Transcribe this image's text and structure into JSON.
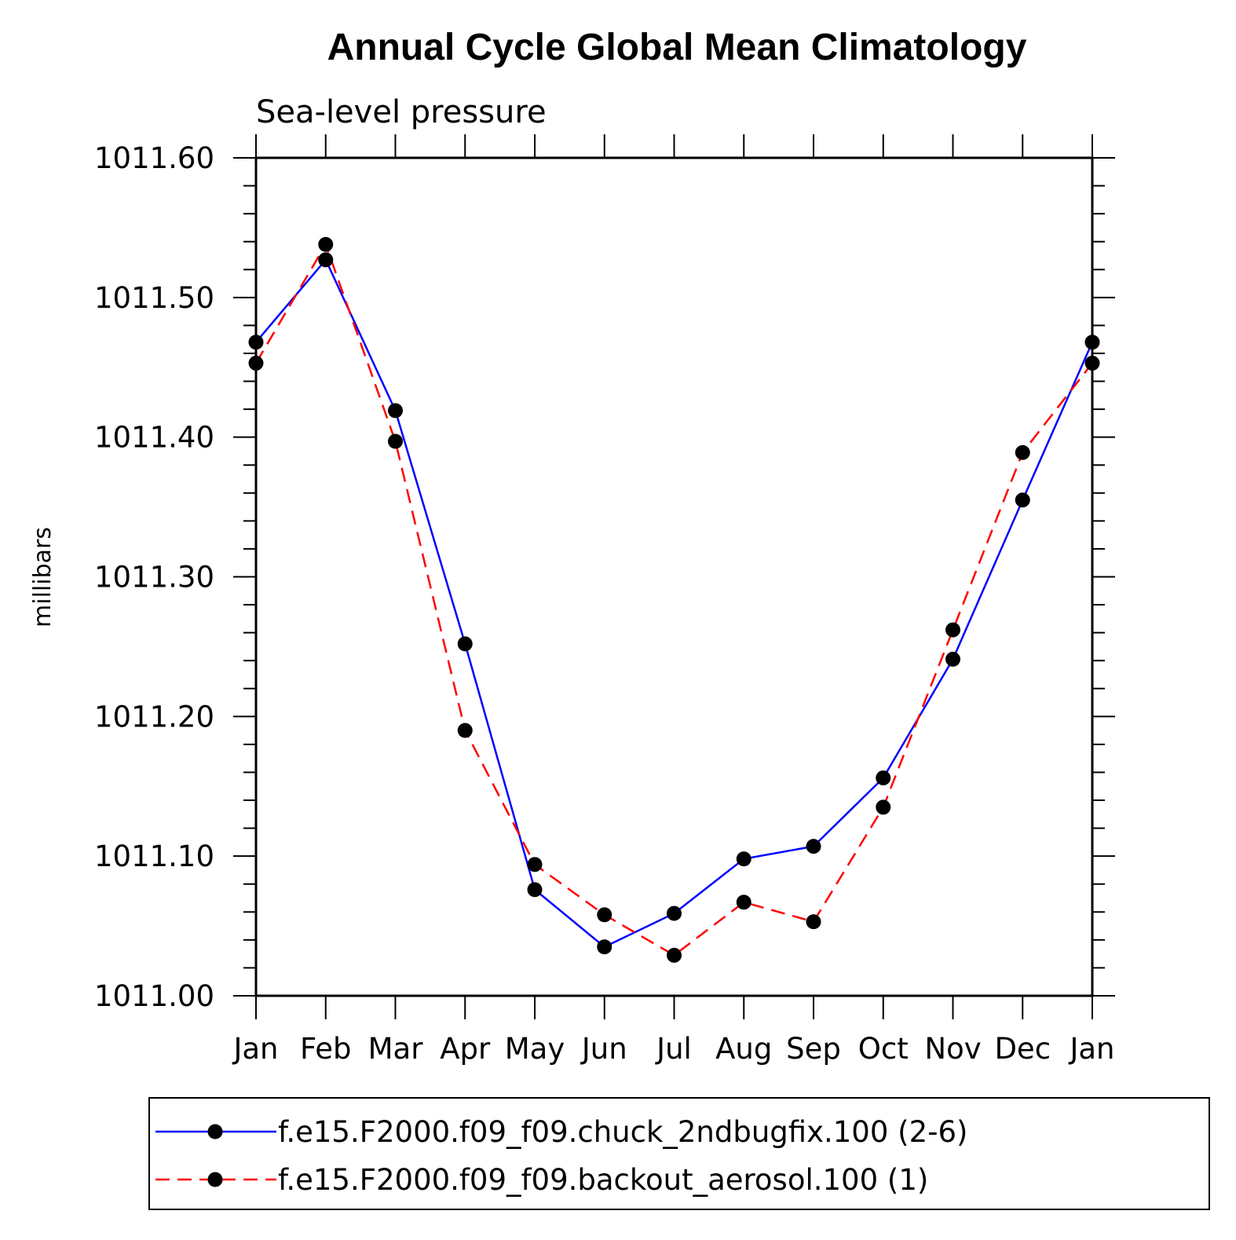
{
  "chart_data": {
    "type": "line",
    "title": "Annual Cycle Global Mean Climatology",
    "subtitle": "Sea-level pressure",
    "xlabel": "",
    "ylabel": "millibars",
    "categories": [
      "Jan",
      "Feb",
      "Mar",
      "Apr",
      "May",
      "Jun",
      "Jul",
      "Aug",
      "Sep",
      "Oct",
      "Nov",
      "Dec",
      "Jan"
    ],
    "ylim": [
      1011.0,
      1011.6
    ],
    "yticks": [
      "1011.00",
      "1011.10",
      "1011.20",
      "1011.30",
      "1011.40",
      "1011.50",
      "1011.60"
    ],
    "grid": false,
    "legend_position": "bottom",
    "series": [
      {
        "name": "f.e15.F2000.f09_f09.chuck_2ndbugfix.100 (2-6)",
        "color": "#0000ff",
        "line_style": "solid",
        "marker": "filled-circle",
        "values": [
          1011.468,
          1011.527,
          1011.419,
          1011.252,
          1011.076,
          1011.035,
          1011.059,
          1011.098,
          1011.107,
          1011.156,
          1011.241,
          1011.355,
          1011.468
        ]
      },
      {
        "name": "f.e15.F2000.f09_f09.backout_aerosol.100 (1)",
        "color": "#ff0000",
        "line_style": "dashed",
        "marker": "filled-circle",
        "values": [
          1011.453,
          1011.538,
          1011.397,
          1011.19,
          1011.094,
          1011.058,
          1011.029,
          1011.067,
          1011.053,
          1011.135,
          1011.262,
          1011.389,
          1011.453
        ]
      }
    ]
  }
}
